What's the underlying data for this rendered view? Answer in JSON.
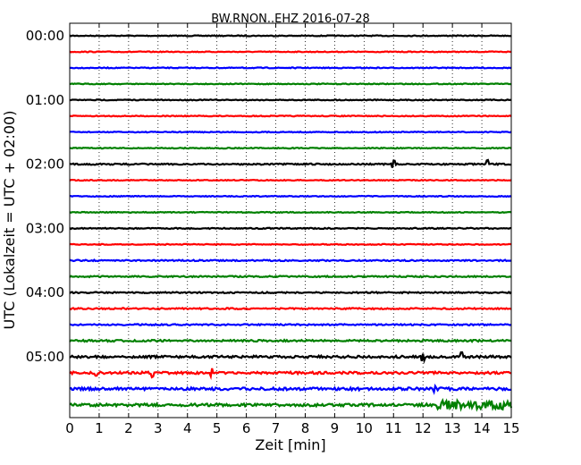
{
  "chart_data": {
    "type": "line",
    "title": "BW.RNON..EHZ 2016-07-28",
    "xlabel": "Zeit  [min]",
    "ylabel": "UTC (Lokalzeit = UTC + 02:00)",
    "xlim": [
      0,
      15
    ],
    "x_ticks": [
      "0",
      "1",
      "2",
      "3",
      "4",
      "5",
      "6",
      "7",
      "8",
      "9",
      "10",
      "11",
      "12",
      "13",
      "14",
      "15"
    ],
    "y_ticks": [
      "00:00",
      "01:00",
      "02:00",
      "03:00",
      "04:00",
      "05:00"
    ],
    "grid": "vertical-dotted",
    "trace_interval_minutes": 15,
    "colors": [
      "#000000",
      "#ff0000",
      "#0000ff",
      "#008000"
    ],
    "traces": [
      {
        "start": "00:00",
        "amplitude": 1
      },
      {
        "start": "00:15",
        "amplitude": 1
      },
      {
        "start": "00:30",
        "amplitude": 1
      },
      {
        "start": "00:45",
        "amplitude": 1
      },
      {
        "start": "01:00",
        "amplitude": 1
      },
      {
        "start": "01:15",
        "amplitude": 1
      },
      {
        "start": "01:30",
        "amplitude": 1
      },
      {
        "start": "01:45",
        "amplitude": 1
      },
      {
        "start": "02:00",
        "amplitude": 1.5,
        "spikes": [
          11.0,
          14.2
        ]
      },
      {
        "start": "02:15",
        "amplitude": 1
      },
      {
        "start": "02:30",
        "amplitude": 1
      },
      {
        "start": "02:45",
        "amplitude": 1
      },
      {
        "start": "03:00",
        "amplitude": 1.2
      },
      {
        "start": "03:15",
        "amplitude": 1
      },
      {
        "start": "03:30",
        "amplitude": 1.5
      },
      {
        "start": "03:45",
        "amplitude": 1.5
      },
      {
        "start": "04:00",
        "amplitude": 1.5
      },
      {
        "start": "04:15",
        "amplitude": 1.5
      },
      {
        "start": "04:30",
        "amplitude": 1.5
      },
      {
        "start": "04:45",
        "amplitude": 2
      },
      {
        "start": "05:00",
        "amplitude": 2.5,
        "spikes": [
          12.0,
          13.3
        ]
      },
      {
        "start": "05:15",
        "amplitude": 2.5,
        "spikes": [
          0.9,
          2.8,
          4.8
        ]
      },
      {
        "start": "05:30",
        "amplitude": 3,
        "spikes": [
          12.4
        ]
      },
      {
        "start": "05:45",
        "amplitude": 3,
        "burst_start": 12.5,
        "burst_amplitude": 10
      }
    ]
  }
}
